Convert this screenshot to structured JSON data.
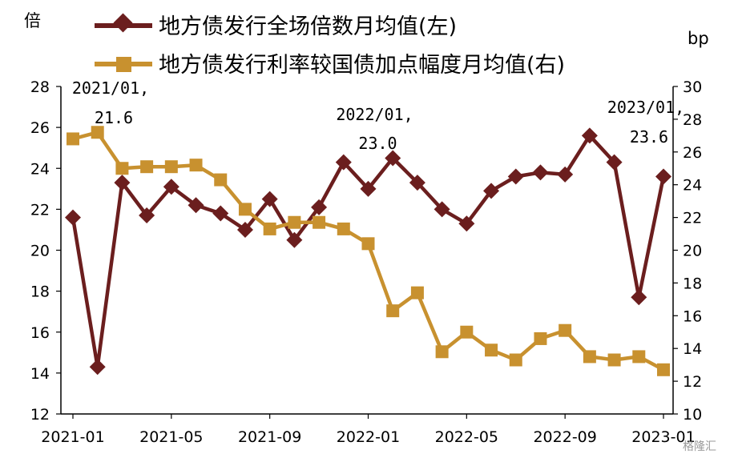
{
  "chart_data": {
    "type": "line",
    "title": "",
    "x": [
      "2021-01",
      "2021-02",
      "2021-03",
      "2021-04",
      "2021-05",
      "2021-06",
      "2021-07",
      "2021-08",
      "2021-09",
      "2021-10",
      "2021-11",
      "2021-12",
      "2022-01",
      "2022-02",
      "2022-03",
      "2022-04",
      "2022-05",
      "2022-06",
      "2022-07",
      "2022-08",
      "2022-09",
      "2022-10",
      "2022-11",
      "2022-12",
      "2023-01"
    ],
    "x_tick_labels": [
      "2021-01",
      "2021-05",
      "2021-09",
      "2022-01",
      "2022-05",
      "2022-09",
      "2023-01"
    ],
    "left_axis": {
      "label": "倍",
      "ylim": [
        12,
        28
      ],
      "ticks": [
        12,
        14,
        16,
        18,
        20,
        22,
        24,
        26,
        28
      ]
    },
    "right_axis": {
      "label": "bp",
      "ylim": [
        10,
        30
      ],
      "ticks": [
        10,
        12,
        14,
        16,
        18,
        20,
        22,
        24,
        26,
        28,
        30
      ]
    },
    "series": [
      {
        "name": "地方债发行全场倍数月均值(左)",
        "axis": "left",
        "color": "#6b1e1e",
        "marker": "diamond",
        "values": [
          21.6,
          14.3,
          23.3,
          21.7,
          23.1,
          22.2,
          21.8,
          21.0,
          22.5,
          20.5,
          22.1,
          24.3,
          23.0,
          24.5,
          23.3,
          22.0,
          21.3,
          22.9,
          23.6,
          23.8,
          23.7,
          25.6,
          24.3,
          17.7,
          23.6
        ]
      },
      {
        "name": "地方债发行利率较国债加点幅度月均值(右)",
        "axis": "right",
        "color": "#c8912f",
        "marker": "square",
        "values": [
          26.8,
          27.2,
          25.0,
          25.1,
          25.1,
          25.2,
          24.3,
          22.5,
          21.3,
          21.7,
          21.7,
          21.3,
          20.4,
          16.3,
          17.4,
          13.8,
          15.0,
          13.9,
          13.3,
          14.6,
          15.1,
          13.5,
          13.3,
          13.5,
          12.7
        ]
      }
    ],
    "annotations": [
      {
        "x": "2021-01",
        "line1": "2021/01,",
        "line2": "21.6"
      },
      {
        "x": "2022-01",
        "line1": "2022/01,",
        "line2": "23.0"
      },
      {
        "x": "2023-01",
        "line1": "2023/01,",
        "line2": "23.6"
      }
    ],
    "legend_placement": "top",
    "grid": false
  },
  "watermark": "格隆汇"
}
